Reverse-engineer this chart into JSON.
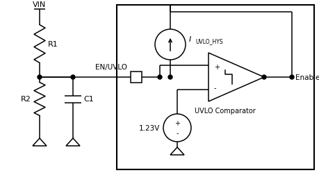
{
  "background_color": "#ffffff",
  "line_color": "#000000",
  "vin_label": "VIN",
  "r1_label": "R1",
  "r2_label": "R2",
  "c1_label": "C1",
  "en_uvlo_label": "EN/UVLO",
  "enable_label": "Enable",
  "uvlo_label": "UVLO Comparator",
  "vref_label": "1.23V",
  "ihys_label": "I",
  "ihys_sub": "UVLO_HYS",
  "plus_label": "+",
  "minus_label": "-"
}
